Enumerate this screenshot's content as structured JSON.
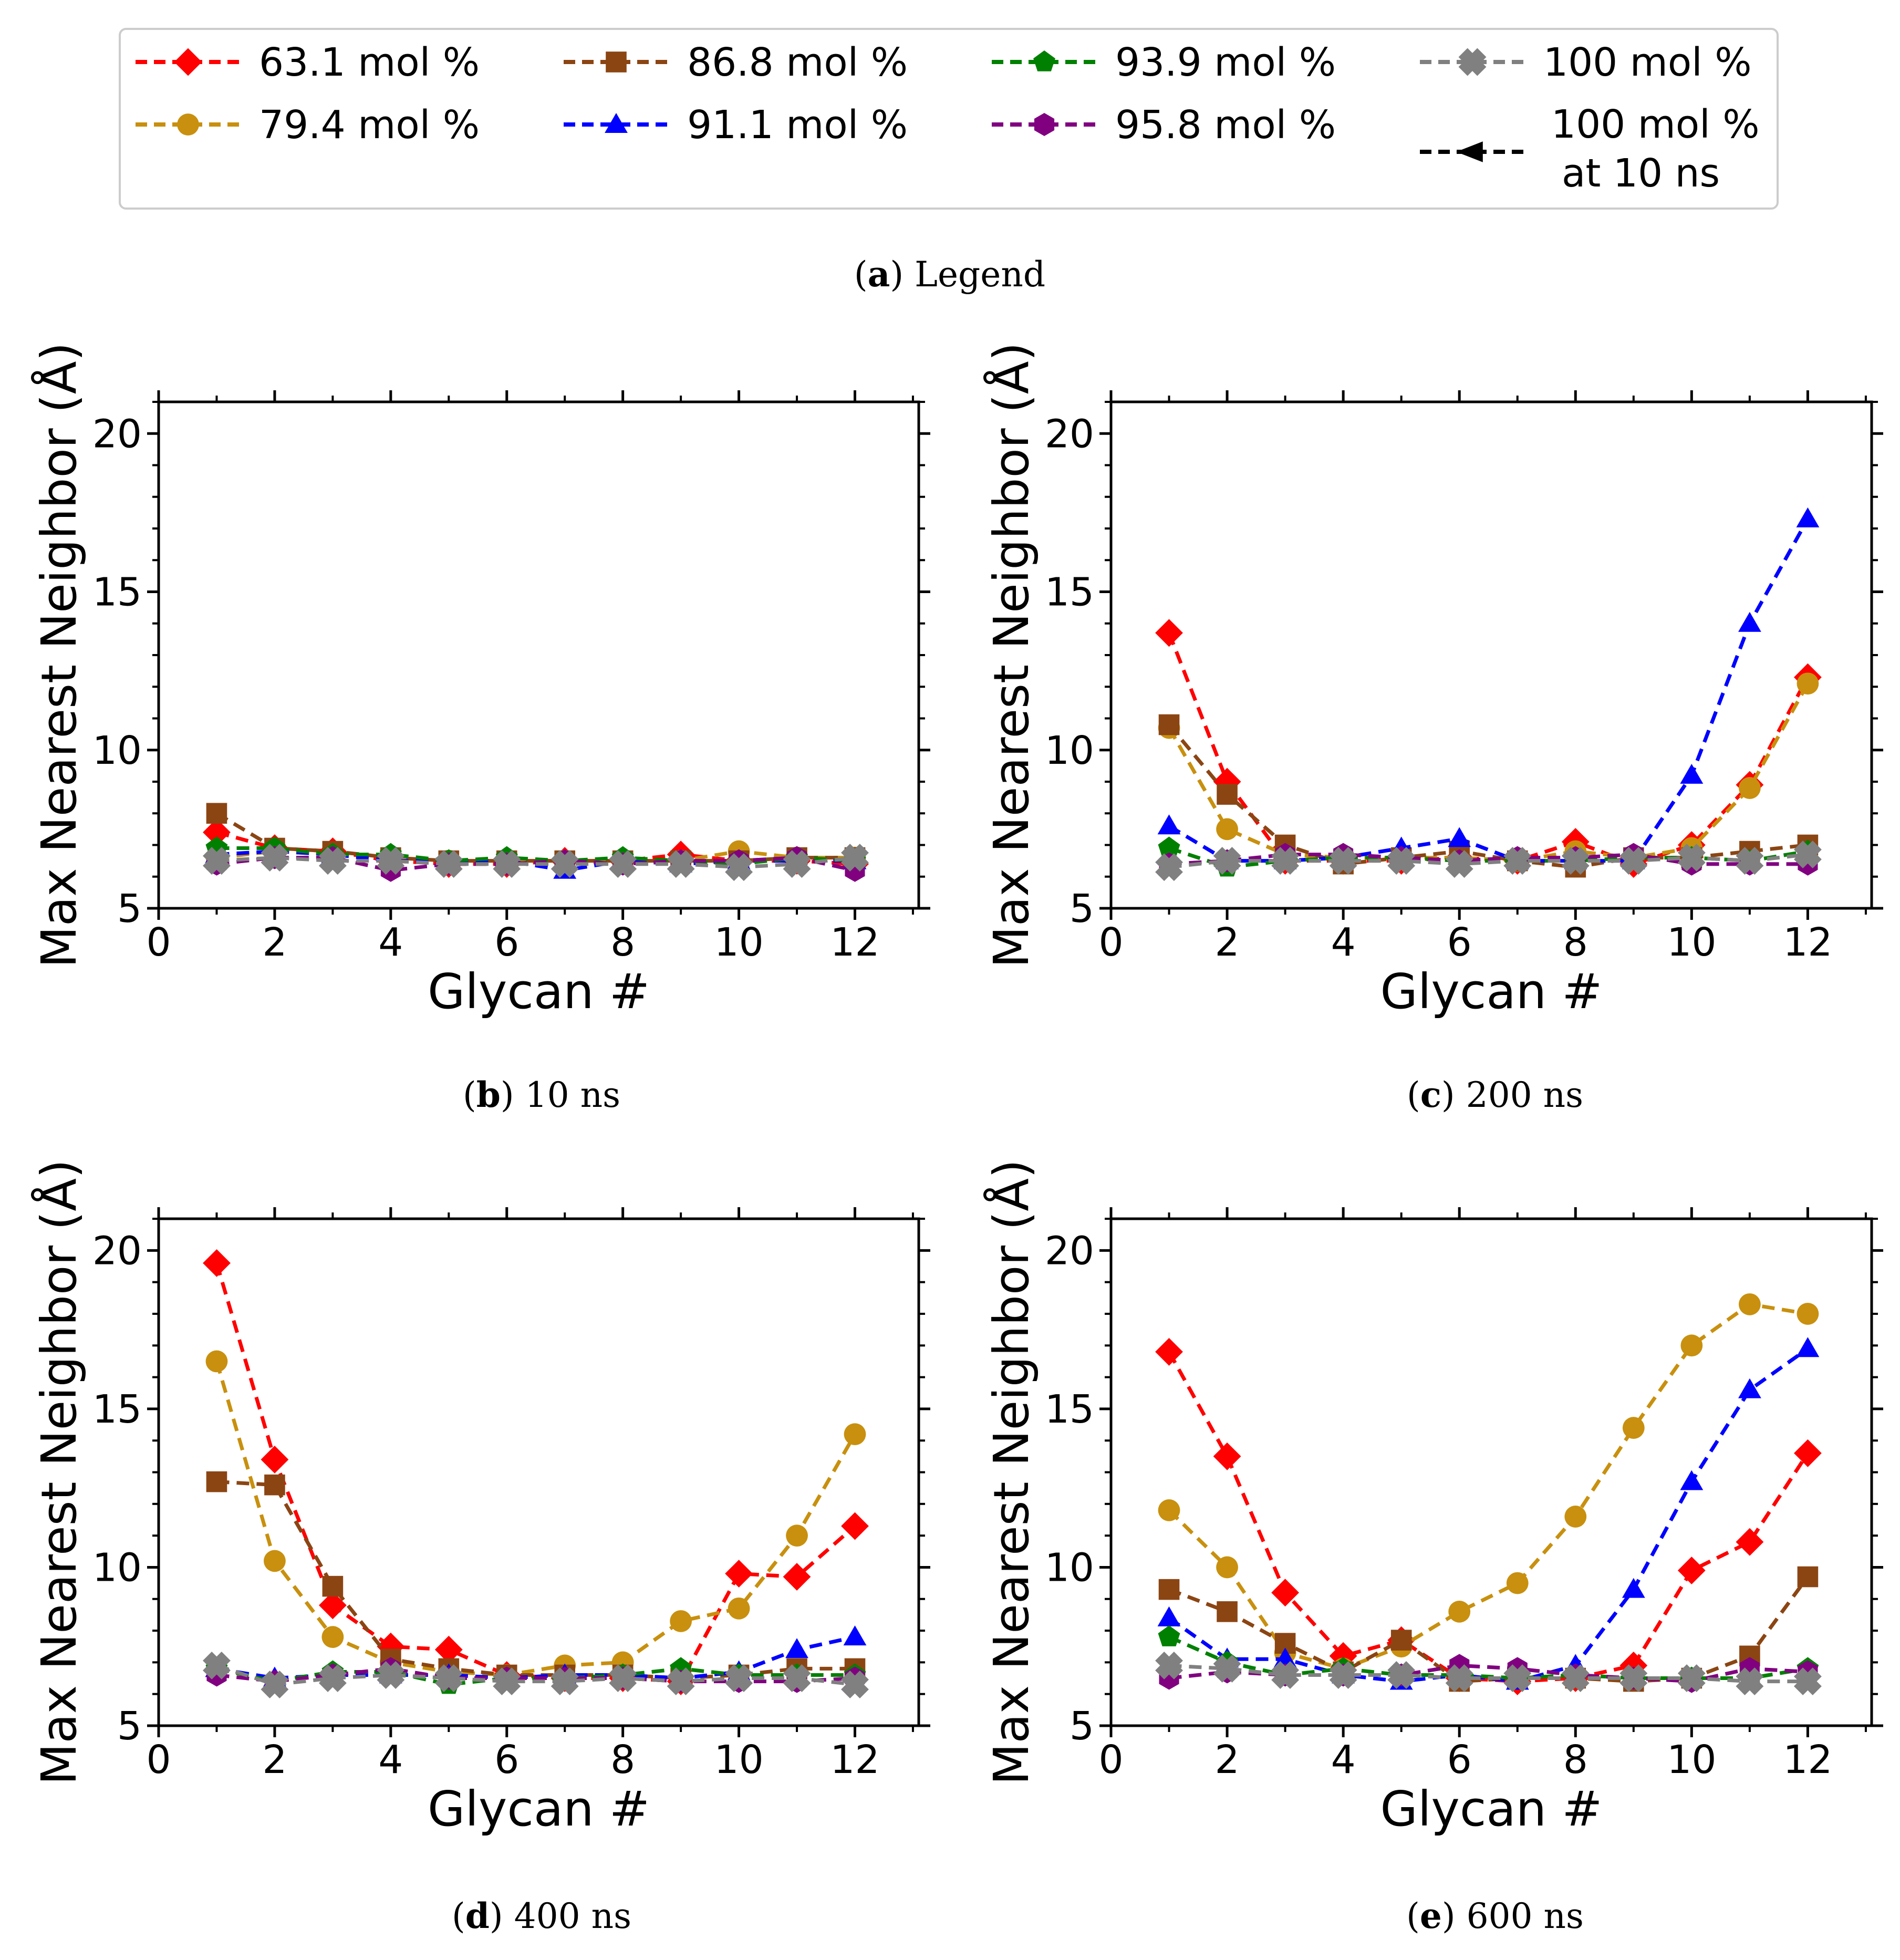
{
  "legend": {
    "caption_letter": "a",
    "caption_text": "Legend",
    "entries": [
      {
        "label": "63.1 mol %",
        "color": "#ff0000",
        "marker": "diamond"
      },
      {
        "label": "79.4 mol %",
        "color": "#c8900e",
        "marker": "circle"
      },
      {
        "label": "86.8 mol %",
        "color": "#8b4513",
        "marker": "square"
      },
      {
        "label": "91.1 mol %",
        "color": "#0000ff",
        "marker": "triangle"
      },
      {
        "label": "93.9 mol %",
        "color": "#008000",
        "marker": "pentagon"
      },
      {
        "label": "95.8 mol %",
        "color": "#800080",
        "marker": "hexagon"
      },
      {
        "label": "100 mol %",
        "color": "#808080",
        "marker": "x"
      },
      {
        "label": "100 mol %",
        "label2": "at 10 ns",
        "color": "#000000",
        "marker": "arrow-left"
      }
    ]
  },
  "chart_data": [
    {
      "type": "line",
      "caption_letter": "b",
      "caption_text": "10 ns",
      "xlabel": "Glycan #",
      "ylabel": "Max Nearest Neighbor (Å)",
      "xlim": [
        0,
        13.1
      ],
      "ylim": [
        5,
        21
      ],
      "xticks": [
        0,
        2,
        4,
        6,
        8,
        10,
        12
      ],
      "yticks": [
        5,
        10,
        15,
        20
      ],
      "x": [
        1,
        2,
        3,
        4,
        5,
        6,
        7,
        8,
        9,
        10,
        11,
        12
      ],
      "series": [
        {
          "name": "63.1 mol %",
          "values": [
            7.4,
            6.9,
            6.8,
            6.5,
            6.4,
            6.4,
            6.5,
            6.5,
            6.7,
            6.5,
            6.5,
            6.4
          ]
        },
        {
          "name": "79.4 mol %",
          "values": [
            6.6,
            6.8,
            6.7,
            6.6,
            6.5,
            6.5,
            6.5,
            6.5,
            6.5,
            6.8,
            6.6,
            6.6
          ]
        },
        {
          "name": "86.8 mol %",
          "values": [
            8.0,
            6.9,
            6.8,
            6.6,
            6.5,
            6.5,
            6.5,
            6.5,
            6.5,
            6.5,
            6.6,
            6.6
          ]
        },
        {
          "name": "91.1 mol %",
          "values": [
            6.7,
            6.8,
            6.7,
            6.5,
            6.5,
            6.5,
            6.2,
            6.5,
            6.4,
            6.5,
            6.5,
            6.5
          ]
        },
        {
          "name": "93.9 mol %",
          "values": [
            6.9,
            6.9,
            6.7,
            6.7,
            6.5,
            6.6,
            6.5,
            6.6,
            6.5,
            6.4,
            6.6,
            6.5
          ]
        },
        {
          "name": "95.8 mol %",
          "values": [
            6.4,
            6.6,
            6.6,
            6.2,
            6.4,
            6.4,
            6.5,
            6.4,
            6.5,
            6.5,
            6.6,
            6.2
          ]
        },
        {
          "name": "100 mol %",
          "values": [
            6.5,
            6.6,
            6.5,
            6.5,
            6.4,
            6.4,
            6.4,
            6.4,
            6.4,
            6.3,
            6.4,
            6.6
          ]
        }
      ]
    },
    {
      "type": "line",
      "caption_letter": "c",
      "caption_text": "200 ns",
      "xlabel": "Glycan #",
      "ylabel": "Max Nearest Neighbor (Å)",
      "xlim": [
        0,
        13.1
      ],
      "ylim": [
        5,
        21
      ],
      "xticks": [
        0,
        2,
        4,
        6,
        8,
        10,
        12
      ],
      "yticks": [
        5,
        10,
        15,
        20
      ],
      "x": [
        1,
        2,
        3,
        4,
        5,
        6,
        7,
        8,
        9,
        10,
        11,
        12
      ],
      "series": [
        {
          "name": "63.1 mol %",
          "values": [
            13.7,
            9.0,
            6.5,
            6.5,
            6.5,
            6.6,
            6.5,
            7.1,
            6.4,
            7.0,
            8.9,
            12.3
          ]
        },
        {
          "name": "79.4 mol %",
          "values": [
            10.7,
            7.5,
            6.7,
            6.6,
            6.6,
            6.6,
            6.5,
            6.8,
            6.6,
            6.9,
            8.8,
            12.1
          ]
        },
        {
          "name": "86.8 mol %",
          "values": [
            10.8,
            8.6,
            7.0,
            6.4,
            6.6,
            6.8,
            6.5,
            6.3,
            6.6,
            6.6,
            6.8,
            7.0
          ]
        },
        {
          "name": "91.1 mol %",
          "values": [
            7.6,
            6.5,
            6.5,
            6.6,
            6.9,
            7.2,
            6.5,
            6.5,
            6.5,
            9.2,
            14.0,
            17.3
          ]
        },
        {
          "name": "93.9 mol %",
          "values": [
            6.9,
            6.3,
            6.5,
            6.6,
            6.6,
            6.5,
            6.5,
            6.5,
            6.6,
            6.6,
            6.5,
            6.8
          ]
        },
        {
          "name": "95.8 mol %",
          "values": [
            6.4,
            6.5,
            6.7,
            6.7,
            6.6,
            6.5,
            6.6,
            6.6,
            6.7,
            6.4,
            6.4,
            6.4
          ]
        },
        {
          "name": "100 mol %",
          "values": [
            6.3,
            6.5,
            6.5,
            6.5,
            6.5,
            6.4,
            6.5,
            6.5,
            6.5,
            6.6,
            6.5,
            6.7
          ]
        }
      ]
    },
    {
      "type": "line",
      "caption_letter": "d",
      "caption_text": "400 ns",
      "xlabel": "Glycan #",
      "ylabel": "Max Nearest Neighbor (Å)",
      "xlim": [
        0,
        13.1
      ],
      "ylim": [
        5,
        21
      ],
      "xticks": [
        0,
        2,
        4,
        6,
        8,
        10,
        12
      ],
      "yticks": [
        5,
        10,
        15,
        20
      ],
      "x": [
        1,
        2,
        3,
        4,
        5,
        6,
        7,
        8,
        9,
        10,
        11,
        12
      ],
      "series": [
        {
          "name": "63.1 mol %",
          "values": [
            19.6,
            13.4,
            8.8,
            7.5,
            7.4,
            6.6,
            6.5,
            6.5,
            6.4,
            9.8,
            9.7,
            11.3
          ]
        },
        {
          "name": "79.4 mol %",
          "values": [
            16.5,
            10.2,
            7.8,
            7.0,
            6.7,
            6.6,
            6.9,
            7.0,
            8.3,
            8.7,
            11.0,
            14.2
          ]
        },
        {
          "name": "86.8 mol %",
          "values": [
            12.7,
            12.6,
            9.4,
            7.1,
            6.8,
            6.6,
            6.6,
            6.6,
            6.5,
            6.6,
            6.8,
            6.8
          ]
        },
        {
          "name": "91.1 mol %",
          "values": [
            6.8,
            6.5,
            6.6,
            6.6,
            6.6,
            6.5,
            6.6,
            6.6,
            6.5,
            6.7,
            7.4,
            7.8
          ]
        },
        {
          "name": "93.9 mol %",
          "values": [
            6.8,
            6.4,
            6.7,
            6.7,
            6.3,
            6.5,
            6.5,
            6.6,
            6.8,
            6.6,
            6.6,
            6.6
          ]
        },
        {
          "name": "95.8 mol %",
          "values": [
            6.6,
            6.4,
            6.6,
            6.8,
            6.5,
            6.5,
            6.5,
            6.5,
            6.4,
            6.4,
            6.4,
            6.5
          ]
        },
        {
          "name": "100 mol %",
          "values": [
            6.9,
            6.3,
            6.5,
            6.6,
            6.5,
            6.4,
            6.4,
            6.5,
            6.4,
            6.5,
            6.5,
            6.3
          ]
        }
      ]
    },
    {
      "type": "line",
      "caption_letter": "e",
      "caption_text": "600 ns",
      "xlabel": "Glycan #",
      "ylabel": "Max Nearest Neighbor (Å)",
      "xlim": [
        0,
        13.1
      ],
      "ylim": [
        5,
        21
      ],
      "xticks": [
        0,
        2,
        4,
        6,
        8,
        10,
        12
      ],
      "yticks": [
        5,
        10,
        15,
        20
      ],
      "x": [
        1,
        2,
        3,
        4,
        5,
        6,
        7,
        8,
        9,
        10,
        11,
        12
      ],
      "series": [
        {
          "name": "63.1 mol %",
          "values": [
            16.8,
            13.5,
            9.2,
            7.2,
            7.7,
            6.5,
            6.4,
            6.5,
            6.9,
            9.9,
            10.8,
            13.6
          ]
        },
        {
          "name": "79.4 mol %",
          "values": [
            11.8,
            10.0,
            7.3,
            6.8,
            7.5,
            8.6,
            9.5,
            11.6,
            14.4,
            17.0,
            18.3,
            18.0
          ]
        },
        {
          "name": "86.8 mol %",
          "values": [
            9.3,
            8.6,
            7.6,
            6.7,
            7.7,
            6.4,
            6.5,
            6.5,
            6.4,
            6.5,
            7.2,
            9.7
          ]
        },
        {
          "name": "91.1 mol %",
          "values": [
            8.4,
            7.1,
            7.1,
            6.6,
            6.4,
            6.6,
            6.4,
            6.9,
            9.3,
            12.7,
            15.6,
            16.9
          ]
        },
        {
          "name": "93.9 mol %",
          "values": [
            7.8,
            7.0,
            6.6,
            6.8,
            6.6,
            6.6,
            6.5,
            6.6,
            6.5,
            6.5,
            6.5,
            6.8
          ]
        },
        {
          "name": "95.8 mol %",
          "values": [
            6.5,
            6.7,
            6.6,
            6.6,
            6.6,
            6.9,
            6.8,
            6.6,
            6.5,
            6.4,
            6.8,
            6.7
          ]
        },
        {
          "name": "100 mol %",
          "values": [
            6.9,
            6.8,
            6.6,
            6.6,
            6.6,
            6.5,
            6.5,
            6.5,
            6.5,
            6.5,
            6.4,
            6.4
          ]
        }
      ]
    }
  ]
}
